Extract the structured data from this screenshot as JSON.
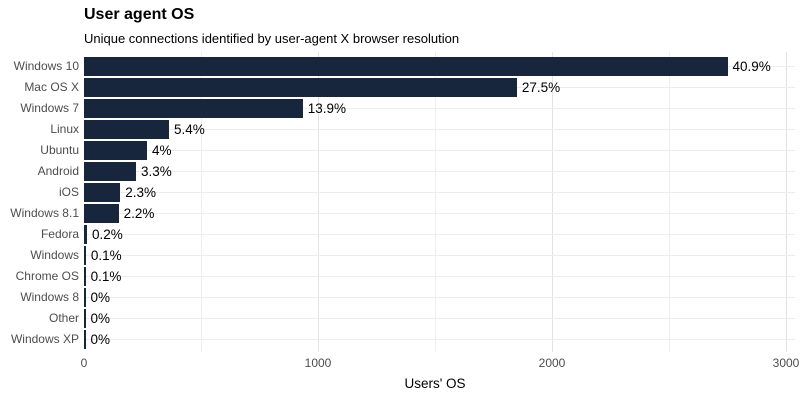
{
  "header": {
    "title": "User agent OS",
    "subtitle": "Unique connections identified by user-agent X browser resolution"
  },
  "chart_data": {
    "type": "bar",
    "orientation": "horizontal",
    "title": "User agent OS",
    "subtitle": "Unique connections identified by user-agent X browser resolution",
    "xlabel": "Users' OS",
    "ylabel": "",
    "xlim": [
      0,
      3000
    ],
    "x_ticks": [
      "0",
      "1000",
      "2000",
      "3000"
    ],
    "x_tick_values": [
      0,
      1000,
      2000,
      3000
    ],
    "x_minor_gridline_values": [
      500,
      1500,
      2500
    ],
    "grid": true,
    "legend": false,
    "categories": [
      "Windows 10",
      "Mac OS X",
      "Windows 7",
      "Linux",
      "Ubuntu",
      "Android",
      "iOS",
      "Windows 8.1",
      "Fedora",
      "Windows",
      "Chrome OS",
      "Windows 8",
      "Other",
      "Windows XP"
    ],
    "values": [
      2750,
      1850,
      935,
      363,
      269,
      222,
      155,
      148,
      13,
      8,
      7,
      2,
      2,
      1
    ],
    "value_labels": [
      "40.9%",
      "27.5%",
      "13.9%",
      "5.4%",
      "4%",
      "3.3%",
      "2.3%",
      "2.2%",
      "0.2%",
      "0.1%",
      "0.1%",
      "0%",
      "0%",
      "0%"
    ]
  },
  "colors": {
    "bar": "#17253D",
    "grid_major": "#e3e3e3",
    "grid_minor": "#efefef",
    "grid_horizontal": "#ededed",
    "axis_text": "#4d4d4d",
    "label_text": "#000000",
    "background": "#ffffff"
  }
}
